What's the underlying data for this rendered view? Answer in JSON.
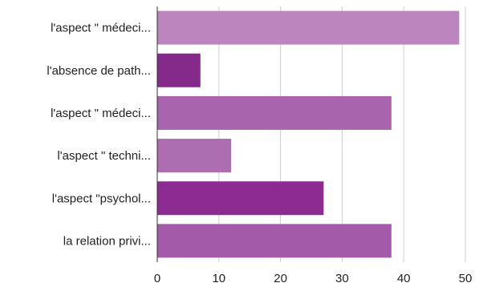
{
  "chart_data": {
    "type": "bar",
    "orientation": "horizontal",
    "categories": [
      "l'aspect \" médeci...",
      "l'absence de path...",
      "l'aspect \" médeci...",
      "l'aspect \" techni...",
      "l'aspect \"psychol...",
      "la relation privi..."
    ],
    "values": [
      49,
      7,
      38,
      12,
      27,
      38
    ],
    "bar_colors": [
      "#bb86be",
      "#85298a",
      "#a864ad",
      "#ac6db1",
      "#8c2b91",
      "#a35aa9"
    ],
    "xlim": [
      0,
      50
    ],
    "xticks": [
      0,
      10,
      20,
      30,
      40,
      50
    ],
    "grid": true,
    "title": "",
    "xlabel": "",
    "ylabel": ""
  }
}
